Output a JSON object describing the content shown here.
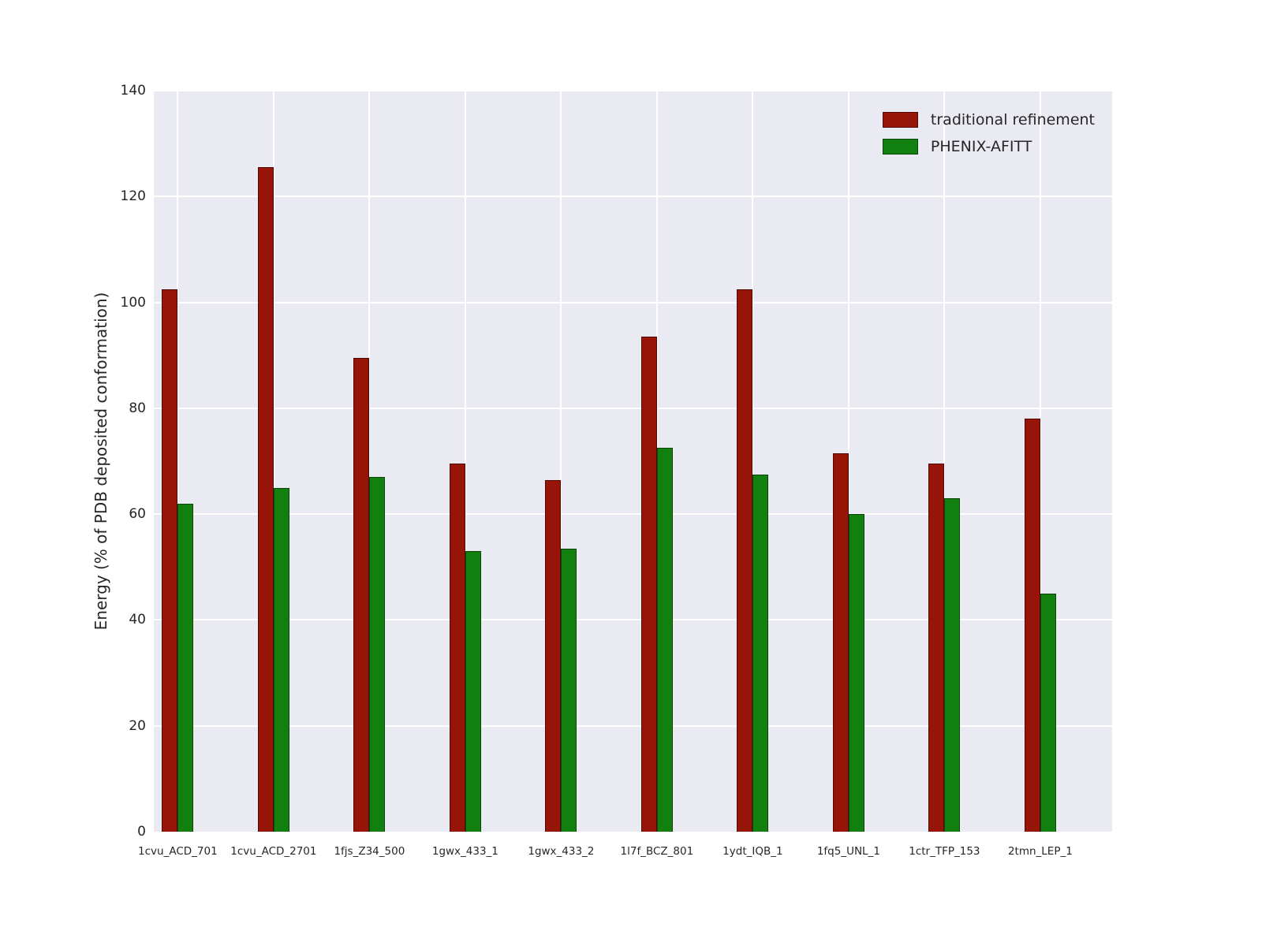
{
  "chart_data": {
    "type": "bar",
    "title": "",
    "xlabel": "",
    "ylabel": "Energy (% of PDB deposited conformation)",
    "ylim": [
      0,
      140
    ],
    "yticks": [
      0,
      20,
      40,
      60,
      80,
      100,
      120,
      140
    ],
    "grid": true,
    "legend_position": "upper right",
    "plot_background": "#eaeaf2",
    "gridline_color": "#ffffff",
    "categories": [
      "1cvu_ACD_701",
      "1cvu_ACD_2701",
      "1fjs_Z34_500",
      "1gwx_433_1",
      "1gwx_433_2",
      "1l7f_BCZ_801",
      "1ydt_IQB_1",
      "1fq5_UNL_1",
      "1ctr_TFP_153",
      "2tmn_LEP_1"
    ],
    "series": [
      {
        "name": "traditional refinement",
        "color": "#961408",
        "values": [
          102.5,
          125.5,
          89.5,
          69.5,
          66.5,
          93.5,
          102.5,
          71.5,
          69.5,
          78.0
        ]
      },
      {
        "name": "PHENIX-AFITT",
        "color": "#12800f",
        "values": [
          62.0,
          65.0,
          67.0,
          53.0,
          53.5,
          72.5,
          67.5,
          60.0,
          63.0,
          45.0
        ]
      }
    ]
  }
}
